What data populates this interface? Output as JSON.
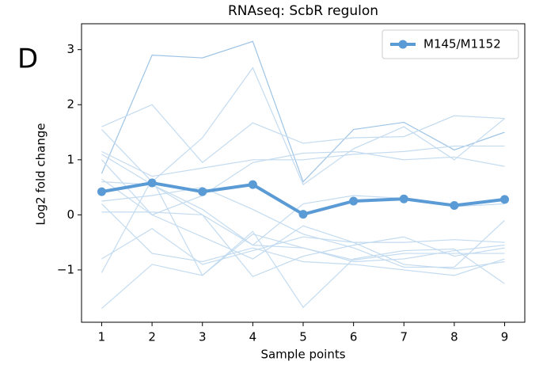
{
  "chart_data": {
    "type": "line",
    "title": "RNAseq: ScbR regulon",
    "panel_label": "D",
    "x_label": "Sample points",
    "y_label": "Log2 fold change",
    "x": [
      1,
      2,
      3,
      4,
      5,
      6,
      7,
      8,
      9
    ],
    "xlim": [
      0.6,
      9.4
    ],
    "xticks": [
      1,
      2,
      3,
      4,
      5,
      6,
      7,
      8,
      9
    ],
    "ylim": [
      -1.95,
      3.47
    ],
    "yticks": [
      {
        "value": -1,
        "label": "−1"
      },
      0,
      1,
      2,
      3
    ],
    "legend": "upper right",
    "series": [
      {
        "color": "#9ec4e6",
        "values": [
          0.75,
          2.9,
          2.85,
          3.15,
          0.6,
          1.55,
          1.68,
          1.18,
          1.5
        ]
      },
      {
        "color": "#c3dbf0",
        "values": [
          1.55,
          0.6,
          1.4,
          2.67,
          0.55,
          1.2,
          1.6,
          1.0,
          1.75
        ]
      },
      {
        "color": "#c3dbf0",
        "values": [
          1.6,
          2.0,
          0.95,
          1.67,
          1.3,
          1.4,
          1.42,
          1.8,
          1.75
        ]
      },
      {
        "color": "#c3dbf0",
        "values": [
          1.15,
          0.7,
          0.85,
          1.0,
          1.0,
          1.1,
          1.15,
          1.25,
          1.25
        ]
      },
      {
        "color": "#c3dbf0",
        "values": [
          1.0,
          0.0,
          0.35,
          0.95,
          1.12,
          1.15,
          1.0,
          1.05,
          0.88
        ]
      },
      {
        "color": "#c3dbf0",
        "values": [
          0.6,
          0.55,
          0.1,
          -0.55,
          0.2,
          0.35,
          0.3,
          0.15,
          0.2
        ]
      },
      {
        "color": "#c3dbf0",
        "values": [
          0.25,
          0.35,
          0.5,
          0.1,
          -0.35,
          -0.6,
          -0.95,
          -0.95,
          -0.1
        ]
      },
      {
        "color": "#c3dbf0",
        "values": [
          0.05,
          0.05,
          0.0,
          -0.55,
          -0.6,
          -0.85,
          -0.8,
          -0.65,
          -0.55
        ]
      },
      {
        "color": "#c3dbf0",
        "values": [
          -0.8,
          -0.25,
          -0.9,
          -0.65,
          -0.4,
          -0.5,
          -0.5,
          -0.45,
          -0.5
        ]
      },
      {
        "color": "#c3dbf0",
        "values": [
          -1.05,
          0.65,
          -1.1,
          -0.35,
          -0.6,
          -0.82,
          -0.7,
          -0.7,
          -0.7
        ]
      },
      {
        "color": "#c3dbf0",
        "values": [
          -1.7,
          -0.9,
          -1.1,
          -0.3,
          -1.68,
          -0.8,
          -0.65,
          -0.62,
          -1.25
        ]
      },
      {
        "color": "#c3dbf0",
        "values": [
          0.2,
          -0.7,
          -0.85,
          -0.6,
          -0.85,
          -0.9,
          -1.0,
          -1.1,
          -0.8
        ]
      },
      {
        "color": "#c3dbf0",
        "values": [
          0.65,
          0.0,
          -0.4,
          -0.8,
          -0.2,
          -0.5,
          -0.9,
          -0.98,
          -0.85
        ]
      },
      {
        "color": "#c3dbf0",
        "values": [
          1.1,
          0.55,
          0.0,
          -1.12,
          -0.75,
          -0.55,
          -0.4,
          -0.75,
          -0.6
        ]
      },
      {
        "name": "M145/M1152",
        "color": "#5b9bd5",
        "marker": true,
        "values": [
          0.42,
          0.58,
          0.42,
          0.55,
          0.01,
          0.25,
          0.29,
          0.17,
          0.28
        ]
      }
    ]
  }
}
